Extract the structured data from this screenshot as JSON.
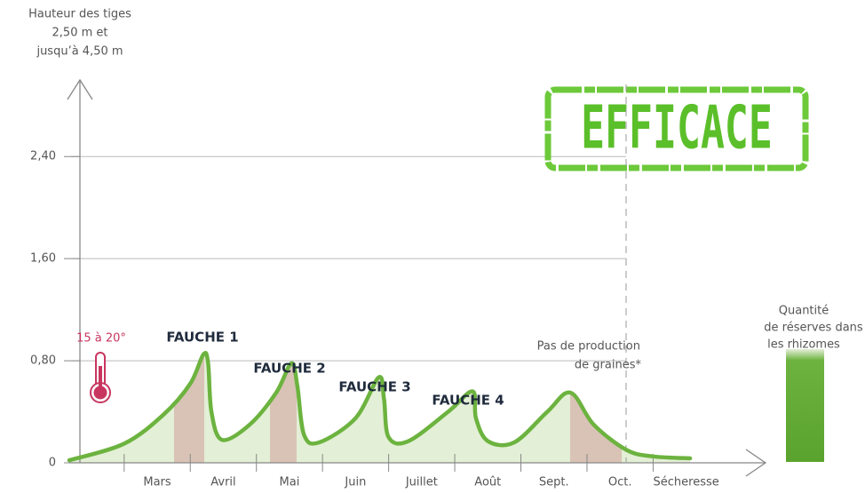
{
  "chart_data": {
    "type": "line",
    "y_label": [
      "Hauteur des tiges",
      "2,50 m et",
      "jusqu’à 4,50 m"
    ],
    "categories": [
      "Mars",
      "Avril",
      "Mai",
      "Juin",
      "Juillet",
      "Août",
      "Sept.",
      "Oct.",
      "Sécheresse"
    ],
    "xlim": [
      -0.83,
      9.7
    ],
    "xticks": [
      0,
      1,
      2,
      3,
      4,
      5,
      6,
      7,
      8
    ],
    "ylim": [
      0,
      3
    ],
    "yticks": [
      0,
      {
        "value": 0.8,
        "label": "0,80"
      },
      {
        "value": 1.6,
        "label": "1,60"
      },
      {
        "value": 2.4,
        "label": "2,40"
      }
    ],
    "grid": true,
    "series": [
      {
        "name": "Hauteur des tiges",
        "color": "#6cb33f",
        "x": [
          -0.83,
          0.0,
          0.6,
          1.0,
          1.2,
          1.27,
          1.32,
          1.48,
          1.9,
          2.3,
          2.53,
          2.62,
          2.72,
          2.95,
          3.5,
          3.85,
          3.93,
          4.0,
          4.3,
          4.9,
          5.27,
          5.32,
          5.5,
          5.9,
          6.4,
          6.75,
          7.1,
          7.6,
          8.0,
          8.56
        ],
        "values": [
          0.02,
          0.15,
          0.38,
          0.62,
          0.85,
          0.78,
          0.4,
          0.18,
          0.3,
          0.55,
          0.78,
          0.6,
          0.22,
          0.16,
          0.35,
          0.67,
          0.5,
          0.2,
          0.17,
          0.4,
          0.56,
          0.35,
          0.17,
          0.16,
          0.4,
          0.55,
          0.3,
          0.1,
          0.05,
          0.035
        ]
      }
    ],
    "annotations": {
      "fauche": [
        "FAUCHE 1",
        "FAUCHE 2",
        "FAUCHE 3",
        "FAUCHE 4"
      ],
      "seeds": [
        "Pas de production",
        "de graines*"
      ],
      "temperature": "15 à 20°",
      "reserves": [
        "Quantité",
        "de réserves dans",
        "les rhizomes"
      ],
      "stamp": "EFFICACE"
    }
  }
}
